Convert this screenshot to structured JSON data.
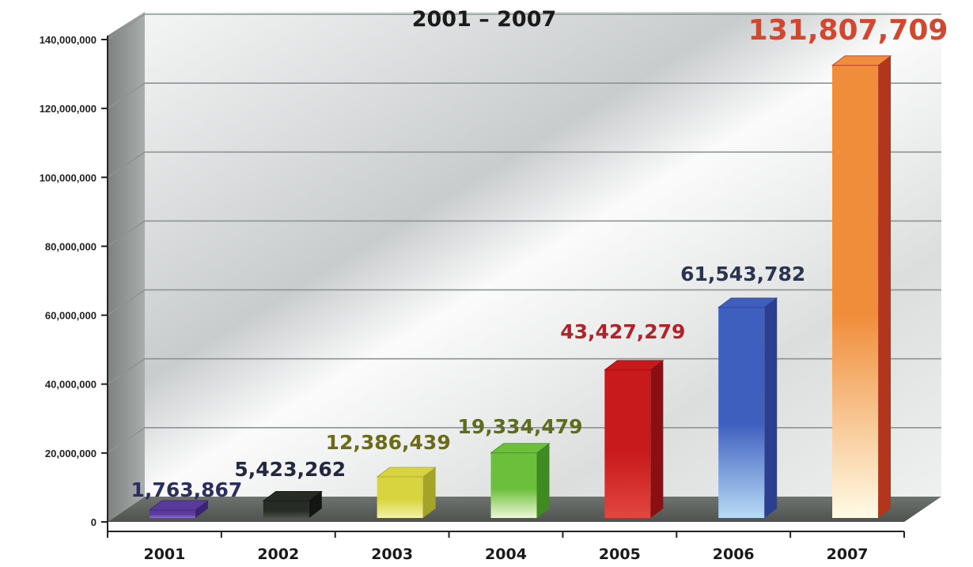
{
  "chart_data": {
    "type": "bar",
    "title": "2001 – 2007",
    "categories": [
      "2001",
      "2002",
      "2003",
      "2004",
      "2005",
      "2006",
      "2007"
    ],
    "values": [
      1763867,
      5423262,
      12386439,
      19334479,
      43427279,
      61543782,
      131807709
    ],
    "data_labels": [
      "1,763,867",
      "5,423,262",
      "12,386,439",
      "19,334,479",
      "43,427,279",
      "61,543,782",
      "131,807,709"
    ],
    "ylim": [
      0,
      140000000
    ],
    "yticks": [
      0,
      20000000,
      40000000,
      60000000,
      80000000,
      100000000,
      120000000,
      140000000
    ],
    "ytick_labels": [
      "0",
      "20,000,000",
      "40,000,000",
      "60,000,000",
      "80,000,000",
      "100,000,000",
      "120,000,000",
      "140,000,000"
    ],
    "grid": true,
    "legend": "none",
    "bar_colors": [
      {
        "light": "#8a6fd0",
        "base": "#5a3a9c",
        "dark": "#3a2470"
      },
      {
        "light": "#4a5148",
        "base": "#262b25",
        "dark": "#121512"
      },
      {
        "light": "#f4f3a8",
        "base": "#d7d43f",
        "dark": "#a6a32a"
      },
      {
        "light": "#eef8d8",
        "base": "#6cbf3a",
        "dark": "#3f8a21"
      },
      {
        "light": "#e2463f",
        "base": "#c8191c",
        "dark": "#8a0e12"
      },
      {
        "light": "#b8dbf5",
        "base": "#3f5fbf",
        "dark": "#2a3f8f"
      },
      {
        "light": "#fffbe6",
        "base": "#f08d3a",
        "dark": "#b2361c"
      }
    ],
    "label_colors": [
      "#2b2f5e",
      "#23283f",
      "#6b6b1a",
      "#5f6b1e",
      "#b0232a",
      "#2b3552",
      "#d1472f"
    ]
  }
}
